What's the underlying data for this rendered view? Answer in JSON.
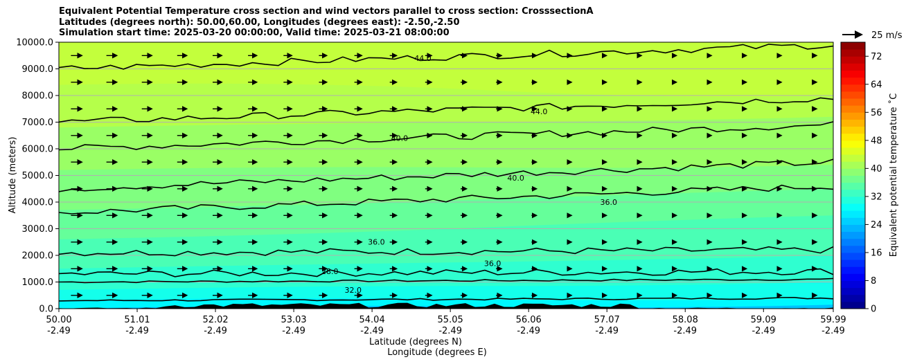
{
  "title_lines": [
    "Equivalent Potential Temperature cross section and wind vectors parallel to cross section: CrosssectionA",
    "Latitudes (degrees north): 50.00,60.00, Longitudes (degrees east): -2.50,-2.50",
    "Simulation start time: 2025-03-20 00:00:00, Valid time: 2025-03-21 08:00:00"
  ],
  "chart_data": {
    "type": "contourf",
    "title": "Equivalent Potential Temperature cross section and wind vectors parallel to cross section: CrosssectionA",
    "xlabel": "Latitude (degrees N)",
    "xlabel2": "Longitude (degrees E)",
    "ylabel": "Altitude (meters)",
    "x_ticks": [
      {
        "lat": "50.00",
        "lon": "-2.49"
      },
      {
        "lat": "51.01",
        "lon": "-2.49"
      },
      {
        "lat": "52.02",
        "lon": "-2.49"
      },
      {
        "lat": "53.03",
        "lon": "-2.49"
      },
      {
        "lat": "54.04",
        "lon": "-2.49"
      },
      {
        "lat": "55.05",
        "lon": "-2.49"
      },
      {
        "lat": "56.06",
        "lon": "-2.49"
      },
      {
        "lat": "57.07",
        "lon": "-2.49"
      },
      {
        "lat": "58.08",
        "lon": "-2.49"
      },
      {
        "lat": "59.09",
        "lon": "-2.49"
      },
      {
        "lat": "59.99",
        "lon": "-2.49"
      }
    ],
    "xlim": [
      50.0,
      59.99
    ],
    "y_ticks": [
      "0.0",
      "1000.0",
      "2000.0",
      "3000.0",
      "4000.0",
      "5000.0",
      "6000.0",
      "7000.0",
      "8000.0",
      "9000.0",
      "10000.0"
    ],
    "ylim": [
      0,
      10000
    ],
    "grid": "horizontal",
    "colorbar": {
      "label": "Equivalent potential temperature ˚C",
      "ticks": [
        "0",
        "8",
        "16",
        "24",
        "32",
        "40",
        "48",
        "56",
        "64",
        "72"
      ],
      "range": [
        0,
        76
      ],
      "colormap": "jet"
    },
    "quiver_key": "25 m/s",
    "contour_levels": [
      {
        "value": 28,
        "label": "28.0",
        "alt": [
          1000
        ]
      },
      {
        "value": 32,
        "label": "32.0",
        "alt": [
          300
        ]
      },
      {
        "value": 36,
        "label": "36.0",
        "alt": [
          2100,
          1300,
          3600
        ]
      },
      {
        "value": 40,
        "label": "40.0",
        "alt": [
          6000,
          4500
        ]
      },
      {
        "value": 44,
        "label": "44.0",
        "alt": [
          9000,
          7000
        ]
      }
    ],
    "bands": [
      {
        "theta_c": 43,
        "alt_left": 10000,
        "alt_right": 10000
      },
      {
        "theta_c": 42,
        "alt_left": 8400,
        "alt_right": 8000
      },
      {
        "theta_c": 40,
        "alt_left": 6800,
        "alt_right": 7200
      },
      {
        "theta_c": 38,
        "alt_left": 5200,
        "alt_right": 5400
      },
      {
        "theta_c": 36,
        "alt_left": 3700,
        "alt_right": 4500
      },
      {
        "theta_c": 34,
        "alt_left": 2600,
        "alt_right": 3500
      },
      {
        "theta_c": 32,
        "alt_left": 1500,
        "alt_right": 2000
      },
      {
        "theta_c": 30,
        "alt_left": 700,
        "alt_right": 1000
      },
      {
        "theta_c": 28,
        "alt_left": 300,
        "alt_right": 400
      },
      {
        "theta_c": 24,
        "alt_left": 0,
        "alt_right": 150
      }
    ]
  }
}
